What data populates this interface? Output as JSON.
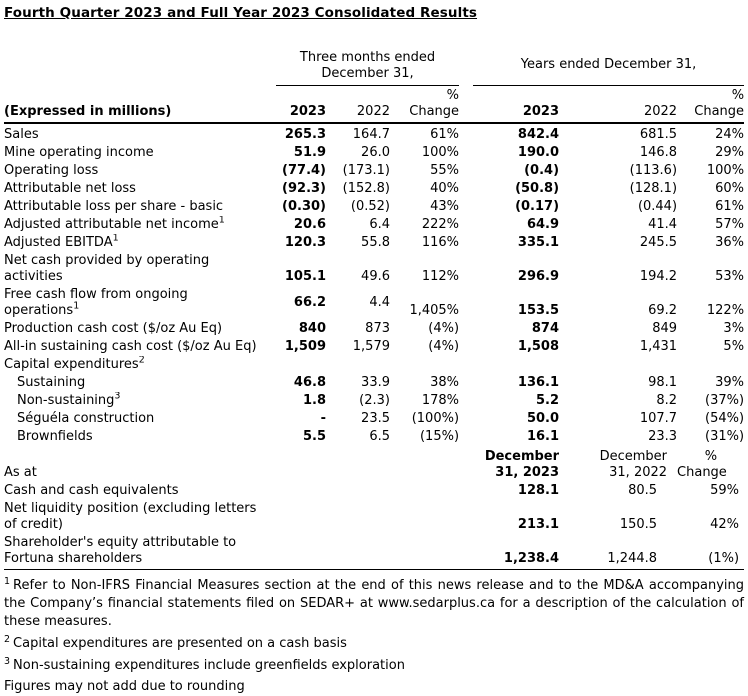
{
  "title": "Fourth Quarter 2023 and Full Year 2023 Consolidated Results",
  "table": {
    "group_headers": {
      "q4": "Three months ended\nDecember 31,",
      "fy": "Years ended December 31,"
    },
    "column_headers": {
      "label": "(Expressed in millions)",
      "q4_2023": "2023",
      "q4_2022": "2022",
      "q4_change": "%\nChange",
      "fy_2023": "2023",
      "fy_2022": "2022",
      "fy_change": "%\nChange"
    },
    "rows": [
      {
        "id": "sales",
        "label": "Sales",
        "q4_2023": "265.3",
        "q4_2022": "164.7",
        "q4_change": "61%",
        "fy_2023": "842.4",
        "fy_2022": "681.5",
        "fy_change": "24%"
      },
      {
        "id": "mine-operating-income",
        "label": "Mine operating income",
        "q4_2023": "51.9",
        "q4_2022": "26.0",
        "q4_change": "100%",
        "fy_2023": "190.0",
        "fy_2022": "146.8",
        "fy_change": "29%"
      },
      {
        "id": "operating-loss",
        "label": "Operating loss",
        "q4_2023": "(77.4)",
        "q4_2022": "(173.1)",
        "q4_change": "55%",
        "fy_2023": "(0.4)",
        "fy_2022": "(113.6)",
        "fy_change": "100%"
      },
      {
        "id": "attributable-net-loss",
        "label": "Attributable net loss",
        "q4_2023": "(92.3)",
        "q4_2022": "(152.8)",
        "q4_change": "40%",
        "fy_2023": "(50.8)",
        "fy_2022": "(128.1)",
        "fy_change": "60%"
      },
      {
        "id": "attributable-loss-per-share-basic",
        "label": "Attributable loss per share - basic",
        "q4_2023": "(0.30)",
        "q4_2022": "(0.52)",
        "q4_change": "43%",
        "fy_2023": "(0.17)",
        "fy_2022": "(0.44)",
        "fy_change": "61%"
      },
      {
        "id": "adjusted-attributable-net-income",
        "label": "Adjusted attributable net income",
        "sup": "1",
        "q4_2023": "20.6",
        "q4_2022": "6.4",
        "q4_change": "222%",
        "fy_2023": "64.9",
        "fy_2022": "41.4",
        "fy_change": "57%"
      },
      {
        "id": "adjusted-ebitda",
        "label": "Adjusted EBITDA",
        "sup": "1",
        "q4_2023": "120.3",
        "q4_2022": "55.8",
        "q4_change": "116%",
        "fy_2023": "335.1",
        "fy_2022": "245.5",
        "fy_change": "36%"
      },
      {
        "id": "net-cash-from-operating-activities",
        "label": "Net cash provided by operating\nactivities",
        "q4_2023": "105.1",
        "q4_2022": "49.6",
        "q4_change": "112%",
        "fy_2023": "296.9",
        "fy_2022": "194.2",
        "fy_change": "53%"
      },
      {
        "id": "free-cash-flow",
        "label": "Free cash flow from ongoing\noperations",
        "sup": "1",
        "q4_2023": "66.2",
        "q4_2022": "4.4",
        "q4_change": "1,405%",
        "fy_2023": "153.5",
        "fy_2022": "69.2",
        "fy_change": "122%"
      },
      {
        "id": "production-cash-cost",
        "label": "Production cash cost ($/oz Au Eq)",
        "q4_2023": "840",
        "q4_2022": "873",
        "q4_change": "(4%)",
        "fy_2023": "874",
        "fy_2022": "849",
        "fy_change": "3%"
      },
      {
        "id": "all-in-sustaining-cash-cost",
        "label": "All-in sustaining cash cost ($/oz Au Eq)",
        "q4_2023": "1,509",
        "q4_2022": "1,579",
        "q4_change": "(4%)",
        "fy_2023": "1,508",
        "fy_2022": "1,431",
        "fy_change": "5%"
      },
      {
        "id": "capital-expenditures",
        "label": "Capital expenditures",
        "sup": "2",
        "section": true,
        "q4_2023": "",
        "q4_2022": "",
        "q4_change": "",
        "fy_2023": "",
        "fy_2022": "",
        "fy_change": ""
      },
      {
        "id": "sustaining",
        "label": "Sustaining",
        "indent": true,
        "q4_2023": "46.8",
        "q4_2022": "33.9",
        "q4_change": "38%",
        "fy_2023": "136.1",
        "fy_2022": "98.1",
        "fy_change": "39%"
      },
      {
        "id": "non-sustaining",
        "label": "Non-sustaining",
        "sup": "3",
        "indent": true,
        "q4_2023": "1.8",
        "q4_2022": "(2.3)",
        "q4_change": "178%",
        "fy_2023": "5.2",
        "fy_2022": "8.2",
        "fy_change": "(37%)"
      },
      {
        "id": "seguela-construction",
        "label": "Séguéla construction",
        "indent": true,
        "q4_2023": "-",
        "q4_2022": "23.5",
        "q4_change": "(100%)",
        "fy_2023": "50.0",
        "fy_2022": "107.7",
        "fy_change": "(54%)"
      },
      {
        "id": "brownfields",
        "label": "Brownfields",
        "indent": true,
        "q4_2023": "5.5",
        "q4_2022": "6.5",
        "q4_change": "(15%)",
        "fy_2023": "16.1",
        "fy_2022": "23.3",
        "fy_change": "(31%)"
      }
    ],
    "as_at": {
      "label": "As at",
      "fy_2023": "December\n31, 2023",
      "fy_2022": "December\n31, 2022",
      "fy_change": "%\nChange",
      "rows": [
        {
          "id": "cash-and-cash-equivalents",
          "label": "Cash and cash equivalents",
          "fy_2023": "128.1",
          "fy_2022": "80.5",
          "fy_change": "59%"
        },
        {
          "id": "net-liquidity-position",
          "label": "Net liquidity position (excluding letters\nof credit)",
          "fy_2023": "213.1",
          "fy_2022": "150.5",
          "fy_change": "42%"
        },
        {
          "id": "shareholders-equity",
          "label": "Shareholder's equity attributable to\nFortuna shareholders",
          "fy_2023": "1,238.4",
          "fy_2022": "1,244.8",
          "fy_change": "(1%)"
        }
      ]
    }
  },
  "footnotes": [
    {
      "sup": "1",
      "text": "Refer to Non-IFRS Financial Measures section at the end of this news release and to the MD&A accompanying the Company’s financial statements filed on SEDAR+ at www.sedarplus.ca for a description of the calculation of these measures."
    },
    {
      "sup": "2",
      "text": "Capital expenditures are presented on a cash basis"
    },
    {
      "sup": "3",
      "text": "Non-sustaining expenditures include greenfields exploration"
    },
    {
      "sup": "",
      "text": "Figures may not add due to rounding"
    }
  ]
}
